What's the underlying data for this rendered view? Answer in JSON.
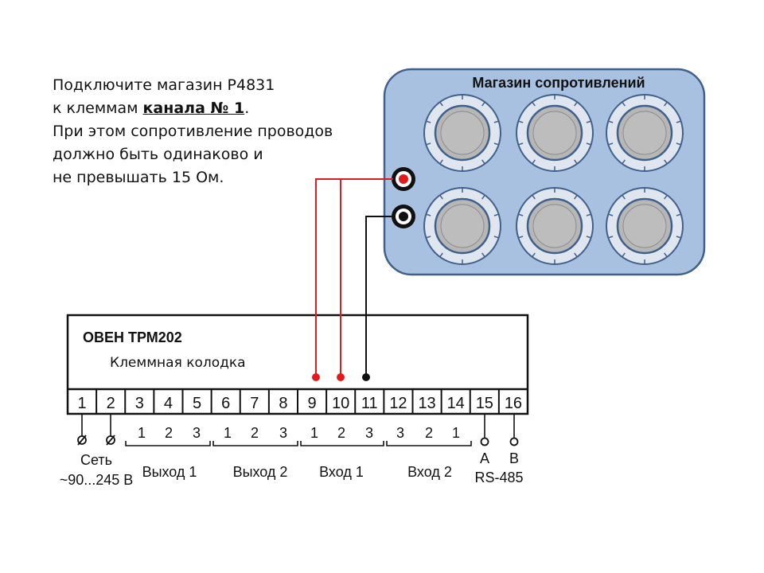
{
  "instruction": {
    "line1": "Подключите магазин Р4831",
    "line2_prefix": "к клеммам ",
    "line2_bold": "канала № 1",
    "line2_suffix": ".",
    "line3": "При этом сопротивление проводов",
    "line4": "должно быть одинаково и",
    "line5": "не превышать 15 Ом."
  },
  "resistance_box": {
    "title": "Магазин сопротивлений",
    "knob_count": 6,
    "fill_color": "#a9c1e1",
    "border_color": "#41608a"
  },
  "device": {
    "title": "ОВЕН ТРМ202",
    "subtitle": "Клеммная колодка",
    "terminals": [
      "1",
      "2",
      "3",
      "4",
      "5",
      "6",
      "7",
      "8",
      "9",
      "10",
      "11",
      "12",
      "13",
      "14",
      "15",
      "16"
    ]
  },
  "groups": [
    {
      "label": "Сеть",
      "sublabel": "~90...245 В",
      "pins": []
    },
    {
      "label": "Выход 1",
      "pins": [
        "1",
        "2",
        "3"
      ]
    },
    {
      "label": "Выход 2",
      "pins": [
        "1",
        "2",
        "3"
      ]
    },
    {
      "label": "Вход 1",
      "pins": [
        "1",
        "2",
        "3"
      ]
    },
    {
      "label": "Вход 2",
      "pins": [
        "3",
        "2",
        "1"
      ]
    },
    {
      "label": "RS-485",
      "pins": [
        "A",
        "B"
      ]
    }
  ],
  "wires": {
    "red_color": "#e11b1b",
    "black_color": "#111111",
    "red_terminals": [
      "9",
      "10"
    ],
    "black_terminals": [
      "11"
    ]
  }
}
